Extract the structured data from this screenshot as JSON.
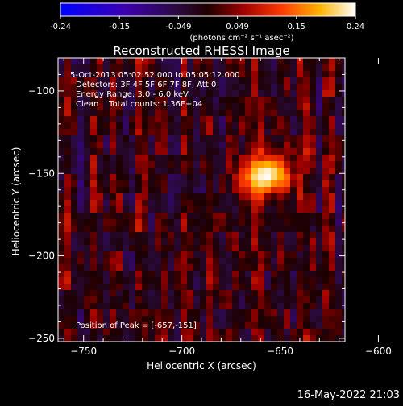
{
  "colorbar": {
    "tick_labels": [
      "-0.24",
      "-0.15",
      "-0.049",
      "0.049",
      "0.15",
      "0.24"
    ],
    "range": [
      -0.24,
      0.24
    ],
    "unit_label": "(photons cm⁻² s⁻¹ asec⁻²)"
  },
  "title": "Reconstructed RHESSI Image",
  "info_lines": [
    "5-Oct-2013 05:02:52.000 to 05:05:12.000",
    "Detectors: 3F 4F 5F 6F 7F 8F, Att 0",
    "Energy Range: 3.0 - 6.0 keV",
    "Clean    Total counts: 1.36E+04"
  ],
  "peak_text": "Position of Peak = [-657,-151]",
  "footer_timestamp": "16-May-2022 21:03",
  "chart_data": {
    "type": "heatmap",
    "title": "Reconstructed RHESSI Image",
    "xlabel": "Heliocentric X (arcsec)",
    "ylabel": "Heliocentric Y (arcsec)",
    "xlim": [
      -763,
      -617
    ],
    "ylim": [
      -252,
      -80
    ],
    "x_ticks": [
      -750,
      -700,
      -650,
      -600
    ],
    "y_ticks": [
      -100,
      -150,
      -200,
      -250
    ],
    "x_tick_labels": [
      "−750",
      "−700",
      "−650",
      "−600"
    ],
    "y_tick_labels": [
      "−100",
      "−150",
      "−200",
      "−250"
    ],
    "color_range": [
      -0.24,
      0.24
    ],
    "peak": {
      "x": -657,
      "y": -151,
      "value": 0.24,
      "sigma_x": 7,
      "sigma_y": 9
    },
    "source_angle_deg": -35,
    "colormap": "rhessi-temperature",
    "grid": false
  }
}
